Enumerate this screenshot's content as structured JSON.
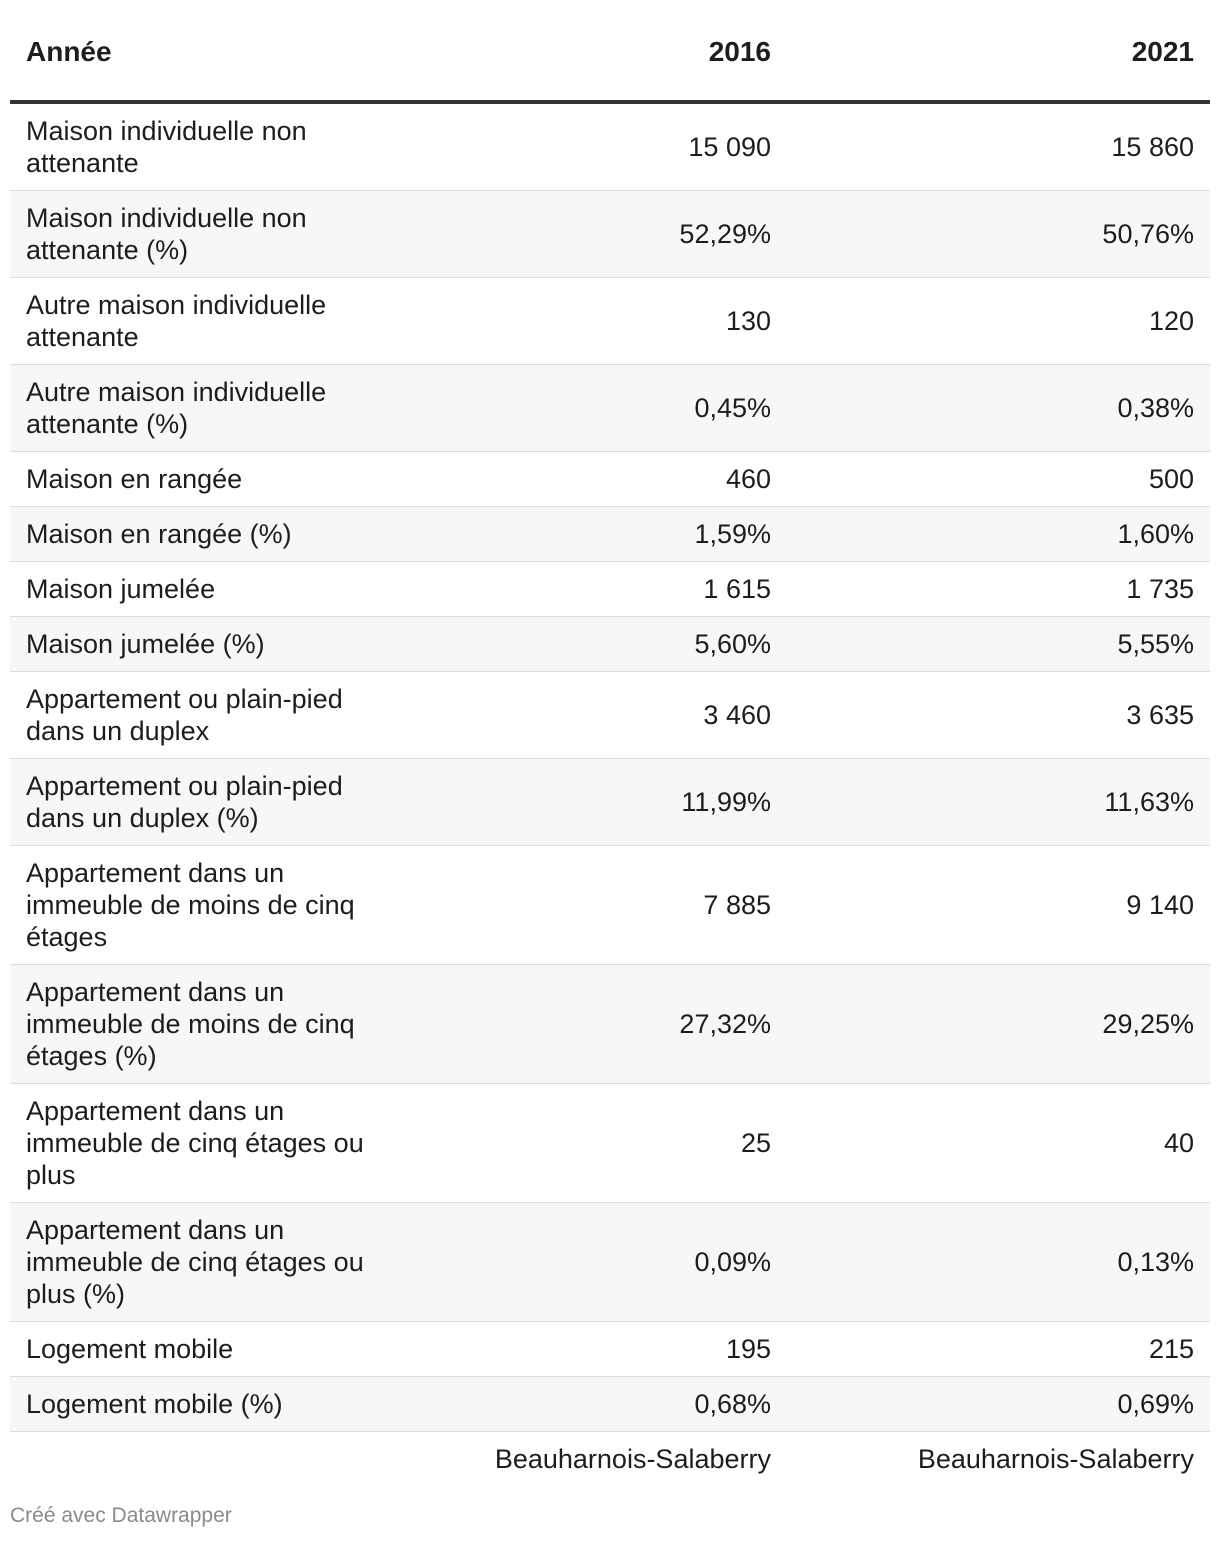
{
  "chart_data": {
    "type": "table",
    "columns": [
      "Année",
      "2016",
      "2021"
    ],
    "rows": [
      {
        "label": "Maison individuelle non attenante",
        "values": [
          "15 090",
          "15 860"
        ]
      },
      {
        "label": "Maison individuelle non attenante (%)",
        "values": [
          "52,29%",
          "50,76%"
        ]
      },
      {
        "label": "Autre maison individuelle attenante",
        "values": [
          "130",
          "120"
        ]
      },
      {
        "label": "Autre maison individuelle attenante (%)",
        "values": [
          "0,45%",
          "0,38%"
        ]
      },
      {
        "label": "Maison en rangée",
        "values": [
          "460",
          "500"
        ]
      },
      {
        "label": "Maison en rangée (%)",
        "values": [
          "1,59%",
          "1,60%"
        ]
      },
      {
        "label": "Maison jumelée",
        "values": [
          "1 615",
          "1 735"
        ]
      },
      {
        "label": "Maison jumelée (%)",
        "values": [
          "5,60%",
          "5,55%"
        ]
      },
      {
        "label": "Appartement ou plain-pied dans un duplex",
        "values": [
          "3 460",
          "3 635"
        ]
      },
      {
        "label": "Appartement ou plain-pied dans un duplex (%)",
        "values": [
          "11,99%",
          "11,63%"
        ]
      },
      {
        "label": "Appartement dans un immeuble de moins de cinq étages",
        "values": [
          "7 885",
          "9 140"
        ]
      },
      {
        "label": "Appartement dans un immeuble de moins de cinq étages (%)",
        "values": [
          "27,32%",
          "29,25%"
        ]
      },
      {
        "label": "Appartement dans un immeuble de cinq étages ou plus",
        "values": [
          "25",
          "40"
        ]
      },
      {
        "label": "Appartement dans un immeuble de cinq étages ou plus (%)",
        "values": [
          "0,09%",
          "0,13%"
        ]
      },
      {
        "label": "Logement mobile",
        "values": [
          "195",
          "215"
        ]
      },
      {
        "label": "Logement mobile (%)",
        "values": [
          "0,68%",
          "0,69%"
        ]
      }
    ],
    "footer": [
      "Beauharnois-Salaberry",
      "Beauharnois-Salaberry"
    ]
  },
  "credit": "Créé avec Datawrapper"
}
